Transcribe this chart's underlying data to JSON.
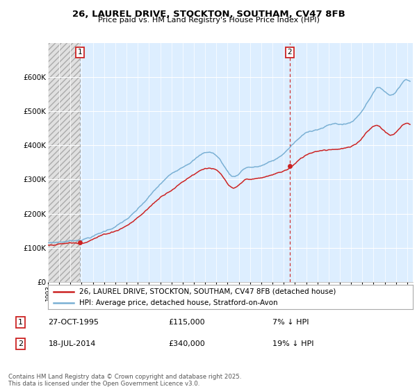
{
  "title1": "26, LAUREL DRIVE, STOCKTON, SOUTHAM, CV47 8FB",
  "title2": "Price paid vs. HM Land Registry's House Price Index (HPI)",
  "ylim": [
    0,
    700000
  ],
  "yticks": [
    0,
    100000,
    200000,
    300000,
    400000,
    500000,
    600000
  ],
  "ytick_labels": [
    "£0",
    "£100K",
    "£200K",
    "£300K",
    "£400K",
    "£500K",
    "£600K"
  ],
  "xlim_start": 1993.0,
  "xlim_end": 2025.5,
  "legend_line1": "26, LAUREL DRIVE, STOCKTON, SOUTHAM, CV47 8FB (detached house)",
  "legend_line2": "HPI: Average price, detached house, Stratford-on-Avon",
  "sale1_date": 1995.83,
  "sale1_price": 115000,
  "sale2_date": 2014.54,
  "sale2_price": 340000,
  "footer": "Contains HM Land Registry data © Crown copyright and database right 2025.\nThis data is licensed under the Open Government Licence v3.0.",
  "hpi_color": "#7ab0d4",
  "price_color": "#cc2222",
  "vline1_color": "#999999",
  "vline2_color": "#cc2222",
  "hatch_region_end": 1995.83,
  "chart_bg_color": "#ddeeff",
  "hatch_bg_color": "#e8e8e8"
}
